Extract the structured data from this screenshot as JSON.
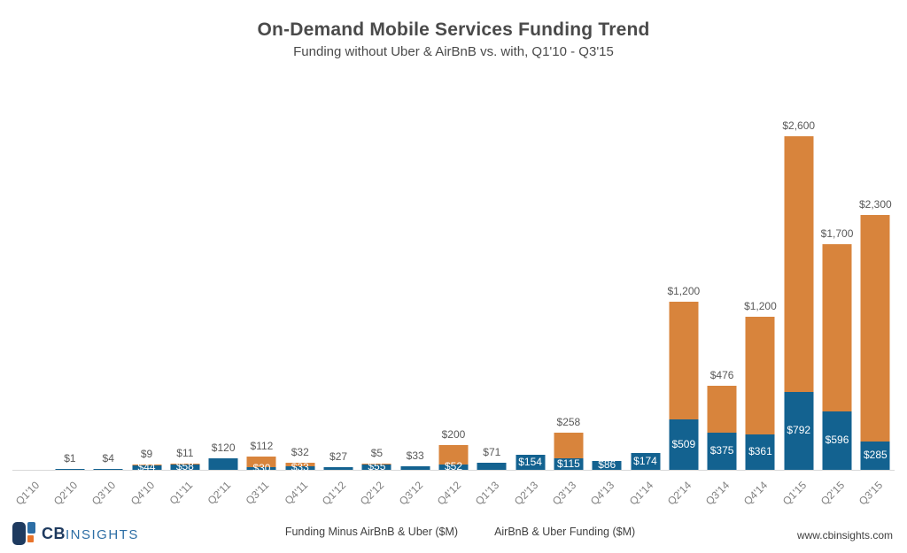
{
  "header": {
    "title": "On-Demand Mobile Services Funding Trend",
    "subtitle": "Funding without Uber & AirBnB vs. with, Q1'10 - Q3'15"
  },
  "chart_data": {
    "type": "bar",
    "stacked": true,
    "title": "On-Demand Mobile Services Funding Trend",
    "subtitle": "Funding without Uber & AirBnB vs. with, Q1'10 - Q3'15",
    "unit": "$M",
    "grid": false,
    "legend_position": "bottom",
    "x_tick_rotation": -45,
    "ylim": [
      0,
      3400
    ],
    "categories": [
      "Q1'10",
      "Q2'10",
      "Q3'10",
      "Q4'10",
      "Q1'11",
      "Q2'11",
      "Q3'11",
      "Q4'11",
      "Q1'12",
      "Q2'12",
      "Q3'12",
      "Q4'12",
      "Q1'13",
      "Q2'13",
      "Q3'13",
      "Q4'13",
      "Q1'14",
      "Q2'14",
      "Q3'14",
      "Q4'14",
      "Q1'15",
      "Q2'15",
      "Q3'15"
    ],
    "series": [
      {
        "name": "Funding Minus AirBnB & Uber ($M)",
        "color": "#136290",
        "values": [
          0,
          1,
          4,
          44,
          58,
          120,
          30,
          33,
          27,
          55,
          33,
          52,
          71,
          154,
          115,
          86,
          174,
          509,
          375,
          361,
          792,
          596,
          285
        ]
      },
      {
        "name": "AirBnB & Uber Funding ($M)",
        "color": "#d8843c",
        "values": [
          0,
          0,
          0,
          9,
          11,
          0,
          112,
          32,
          0,
          5,
          0,
          200,
          0,
          0,
          258,
          0,
          0,
          1200,
          476,
          1200,
          2600,
          1700,
          2300
        ]
      }
    ],
    "labels_above": [
      "",
      "$1",
      "$4",
      "$9",
      "$11",
      "$120",
      "$112",
      "$32",
      "$27",
      "$5",
      "$33",
      "$200",
      "$71",
      "",
      "$258",
      "",
      "",
      "$1,200",
      "$476",
      "$1,200",
      "$2,600",
      "$1,700",
      "$2,300"
    ],
    "labels_inside": [
      "",
      "",
      "",
      "$44",
      "$58",
      "",
      "$30",
      "$33",
      "",
      "$55",
      "",
      "$52",
      "",
      "$154",
      "$115",
      "$86",
      "$174",
      "$509",
      "$375",
      "$361",
      "$792",
      "$596",
      "$285"
    ]
  },
  "legend": {
    "items": [
      {
        "label": "Funding Minus AirBnB & Uber ($M)",
        "color": "#136290"
      },
      {
        "label": "AirBnB & Uber Funding ($M)",
        "color": "#d8843c"
      }
    ]
  },
  "footer": {
    "logo_cb": "CB",
    "logo_insights": "INSIGHTS",
    "url": "www.cbinsights.com"
  },
  "colors": {
    "blue": "#136290",
    "orange": "#d8843c",
    "axis_line": "#d9d9d9",
    "label_gray": "#595959",
    "tick_gray": "#7f7f7f",
    "navy": "#1e3a5f",
    "logo_blue": "#2d6ea5",
    "logo_orange": "#e8732a"
  }
}
